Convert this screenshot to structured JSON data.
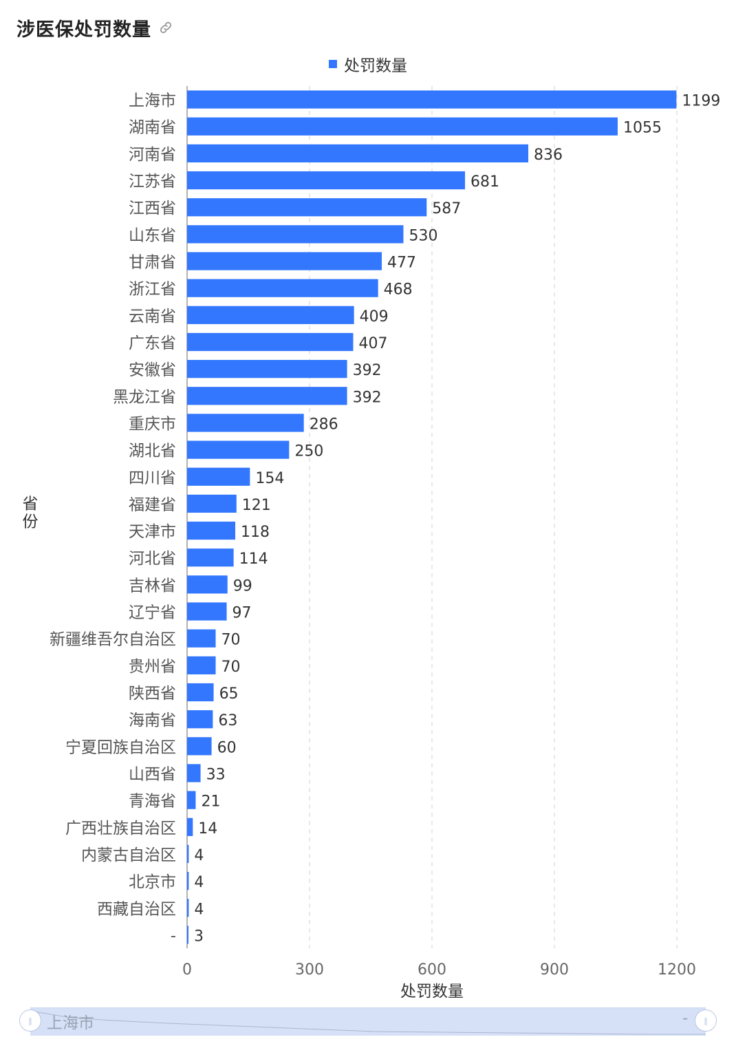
{
  "header": {
    "title": "涉医保处罚数量",
    "link_icon": "link-icon"
  },
  "legend": {
    "label": "处罚数量",
    "color": "#3377ff"
  },
  "chart_data": {
    "type": "bar",
    "orientation": "horizontal",
    "xlabel": "处罚数量",
    "ylabel": "省份",
    "xlim": [
      0,
      1200
    ],
    "xticks": [
      0,
      300,
      600,
      900,
      1200
    ],
    "grid": "vertical-dashed",
    "legend_position": "top-center",
    "bar_color": "#3377ff",
    "series": [
      {
        "name": "处罚数量"
      }
    ],
    "categories": [
      "上海市",
      "湖南省",
      "河南省",
      "江苏省",
      "江西省",
      "山东省",
      "甘肃省",
      "浙江省",
      "云南省",
      "广东省",
      "安徽省",
      "黑龙江省",
      "重庆市",
      "湖北省",
      "四川省",
      "福建省",
      "天津市",
      "河北省",
      "吉林省",
      "辽宁省",
      "新疆维吾尔自治区",
      "贵州省",
      "陕西省",
      "海南省",
      "宁夏回族自治区",
      "山西省",
      "青海省",
      "广西壮族自治区",
      "内蒙古自治区",
      "北京市",
      "西藏自治区",
      "-"
    ],
    "values": [
      1199,
      1055,
      836,
      681,
      587,
      530,
      477,
      468,
      409,
      407,
      392,
      392,
      286,
      250,
      154,
      121,
      118,
      114,
      99,
      97,
      70,
      70,
      65,
      63,
      60,
      33,
      21,
      14,
      4,
      4,
      4,
      3
    ]
  },
  "zoom_slider": {
    "start_label": "上海市",
    "end_label": "-",
    "handle_icon": "grip-icon"
  }
}
